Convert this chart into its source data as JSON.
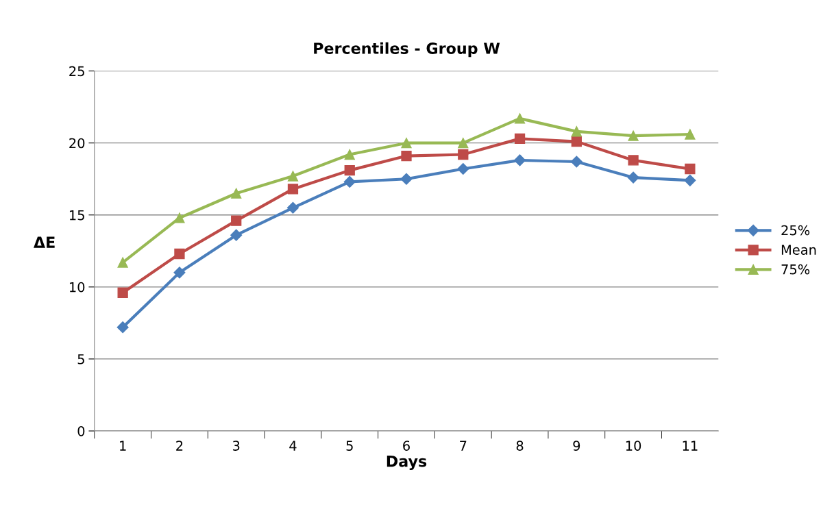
{
  "chart_data": {
    "type": "line",
    "title": "Percentiles - Group W",
    "xlabel": "Days",
    "ylabel": "ΔE",
    "categories": [
      "1",
      "2",
      "3",
      "4",
      "5",
      "6",
      "7",
      "8",
      "9",
      "10",
      "11"
    ],
    "series": [
      {
        "name": "25%",
        "color": "#4a7ebb",
        "marker": "diamond",
        "values": [
          7.2,
          11.0,
          13.6,
          15.5,
          17.3,
          17.5,
          18.2,
          18.8,
          18.7,
          17.6,
          17.4
        ]
      },
      {
        "name": "Mean",
        "color": "#be4b48",
        "marker": "square",
        "values": [
          9.6,
          12.3,
          14.6,
          16.8,
          18.1,
          19.1,
          19.2,
          20.3,
          20.1,
          18.8,
          18.2
        ]
      },
      {
        "name": "75%",
        "color": "#98b954",
        "marker": "triangle",
        "values": [
          11.7,
          14.8,
          16.5,
          17.7,
          19.2,
          20.0,
          20.0,
          21.7,
          20.8,
          20.5,
          20.6
        ]
      }
    ],
    "ylim": [
      0,
      25
    ],
    "yticks": [
      0,
      5,
      10,
      15,
      20,
      25
    ],
    "grid": "y",
    "legend": "right",
    "line_style": "solid"
  }
}
